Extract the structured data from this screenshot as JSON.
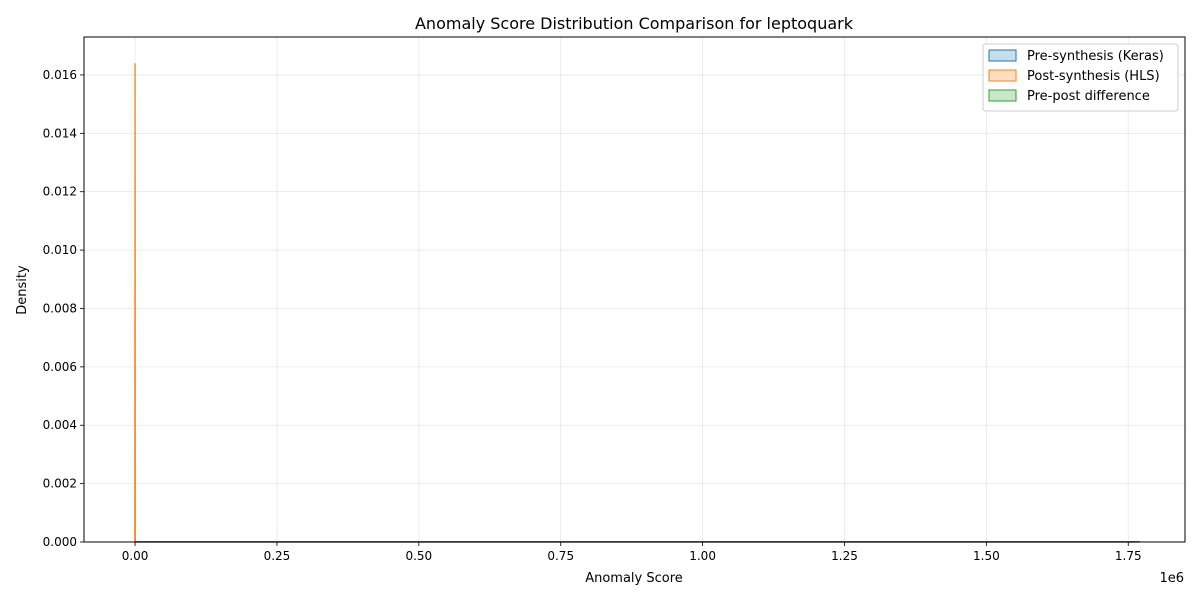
{
  "chart_data": {
    "type": "area",
    "title": "Anomaly Score Distribution Comparison for leptoquark",
    "xlabel": "Anomaly Score",
    "ylabel": "Density",
    "x_offset_label": "1e6",
    "xlim": [
      -0.09,
      1.85
    ],
    "ylim": [
      0,
      0.0173
    ],
    "x_ticks": [
      0.0,
      0.25,
      0.5,
      0.75,
      1.0,
      1.25,
      1.5,
      1.75
    ],
    "x_tick_labels": [
      "0.00",
      "0.25",
      "0.50",
      "0.75",
      "1.00",
      "1.25",
      "1.50",
      "1.75"
    ],
    "y_ticks": [
      0.0,
      0.002,
      0.004,
      0.006,
      0.008,
      0.01,
      0.012,
      0.014,
      0.016
    ],
    "y_tick_labels": [
      "0.000",
      "0.002",
      "0.004",
      "0.006",
      "0.008",
      "0.010",
      "0.012",
      "0.014",
      "0.016"
    ],
    "grid": true,
    "legend_position": "top-right",
    "series": [
      {
        "name": "Pre-synthesis (Keras)",
        "color": "#1f77b4",
        "x": [
          0.0,
          0.0003,
          0.0006,
          1.77
        ],
        "y": [
          0.0,
          2e-05,
          0.0,
          0.0
        ]
      },
      {
        "name": "Post-synthesis (HLS)",
        "color": "#ff7f0e",
        "x": [
          -0.0004,
          -0.0002,
          0.0,
          0.0002,
          0.0004,
          1.77
        ],
        "y": [
          0.0,
          0.008,
          0.0164,
          0.008,
          0.0,
          0.0
        ]
      },
      {
        "name": "Pre-post difference",
        "color": "#2ca02c",
        "x": [
          0.0,
          1.77
        ],
        "y": [
          1e-05,
          1e-05
        ]
      }
    ]
  }
}
